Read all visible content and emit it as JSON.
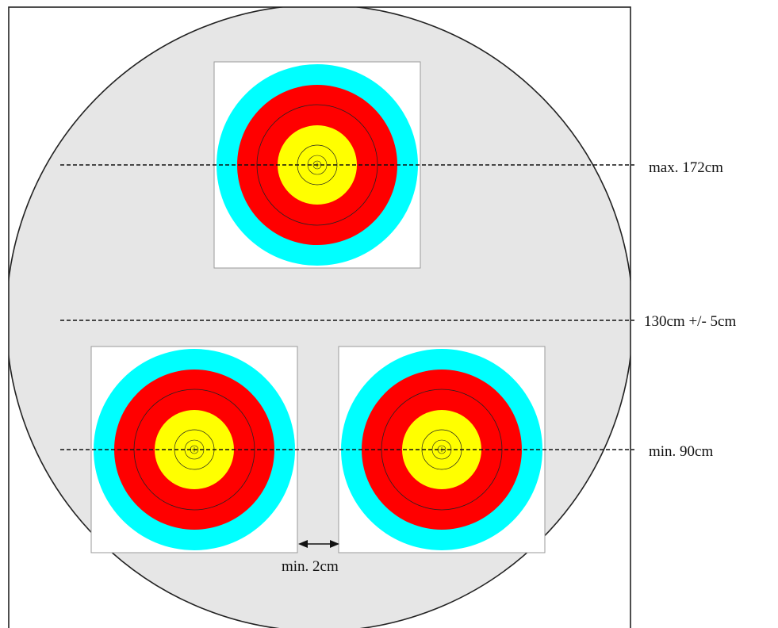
{
  "labels": {
    "max_height": "max. 172cm",
    "center_height": "130cm +/- 5cm",
    "min_height": "min. 90cm",
    "min_gap": "min. 2cm"
  },
  "colors": {
    "background": "#e6e6e6",
    "frame": "#222222",
    "face_background": "#ffffff",
    "ring_blue": "#00ffff",
    "ring_red": "#ff0000",
    "ring_yellow": "#ffff00",
    "ring_line": "#222222",
    "dashed_line": "#111111"
  },
  "targets": [
    {
      "id": "top"
    },
    {
      "id": "bottom-left"
    },
    {
      "id": "bottom-right"
    }
  ]
}
